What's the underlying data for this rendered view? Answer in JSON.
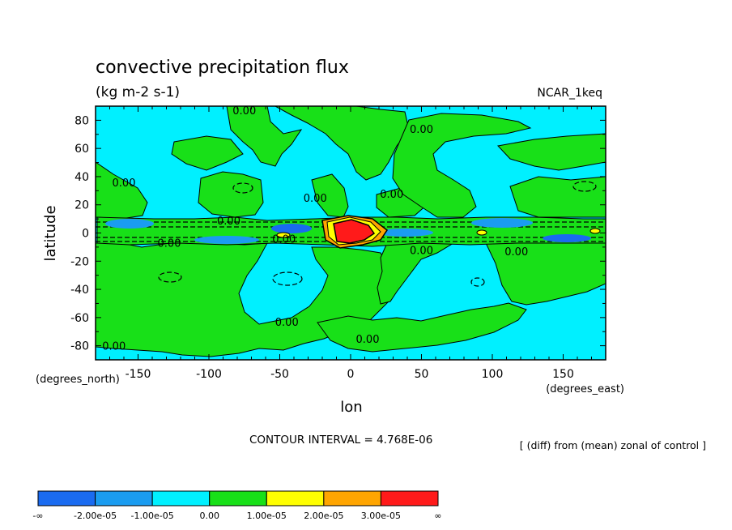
{
  "chart_data": {
    "type": "heatmap",
    "title": "convective precipitation flux",
    "units": "(kg m-2 s-1)",
    "model_label": "NCAR_1keq",
    "xlabel": "lon",
    "ylabel": "latitude",
    "x_units": "(degrees_east)",
    "y_units": "(degrees_north)",
    "xlim": [
      -180,
      180
    ],
    "ylim": [
      -90,
      90
    ],
    "x_ticks": [
      {
        "value": -150,
        "label": "-150"
      },
      {
        "value": -100,
        "label": "-100"
      },
      {
        "value": -50,
        "label": "-50"
      },
      {
        "value": 0,
        "label": "0"
      },
      {
        "value": 50,
        "label": "50"
      },
      {
        "value": 100,
        "label": "100"
      },
      {
        "value": 150,
        "label": "150"
      }
    ],
    "y_ticks": [
      {
        "value": 80,
        "label": "80"
      },
      {
        "value": 60,
        "label": "60"
      },
      {
        "value": 40,
        "label": "40"
      },
      {
        "value": 20,
        "label": "20"
      },
      {
        "value": 0,
        "label": "0"
      },
      {
        "value": -20,
        "label": "-20"
      },
      {
        "value": -40,
        "label": "-40"
      },
      {
        "value": -60,
        "label": "-60"
      },
      {
        "value": -80,
        "label": "-80"
      }
    ],
    "contour_interval_text": "CONTOUR INTERVAL = 4.768E-06",
    "note": "[ (diff) from (mean) zonal of control ]",
    "contour_labels": [
      {
        "text": "0.00",
        "lon": -75,
        "lat": 87
      },
      {
        "text": "0.00",
        "lon": 50,
        "lat": 74
      },
      {
        "text": "0.00",
        "lon": -160,
        "lat": 36
      },
      {
        "text": "0.00",
        "lon": -25,
        "lat": 25
      },
      {
        "text": "0.00",
        "lon": 29,
        "lat": 28
      },
      {
        "text": "0.00",
        "lon": -86,
        "lat": 9
      },
      {
        "text": "0.00",
        "lon": -128,
        "lat": -7
      },
      {
        "text": "0.00",
        "lon": -47,
        "lat": -4
      },
      {
        "text": "0.00",
        "lon": 50,
        "lat": -12
      },
      {
        "text": "0.00",
        "lon": 117,
        "lat": -13
      },
      {
        "text": "0.00",
        "lon": -45,
        "lat": -63
      },
      {
        "text": "0.00",
        "lon": 12,
        "lat": -75
      },
      {
        "text": "0.00",
        "lon": -167,
        "lat": -80
      }
    ],
    "colorbar": {
      "colors": [
        "#1a6bf0",
        "#1a9cf0",
        "#00f0ff",
        "#18e018",
        "#ffff00",
        "#ffa500",
        "#ff1a1a"
      ],
      "labels": [
        "-∞",
        "-2.00e-05",
        "-1.00e-05",
        "0.00",
        "1.00e-05",
        "2.00e-05",
        "3.00e-05",
        "∞"
      ]
    }
  }
}
